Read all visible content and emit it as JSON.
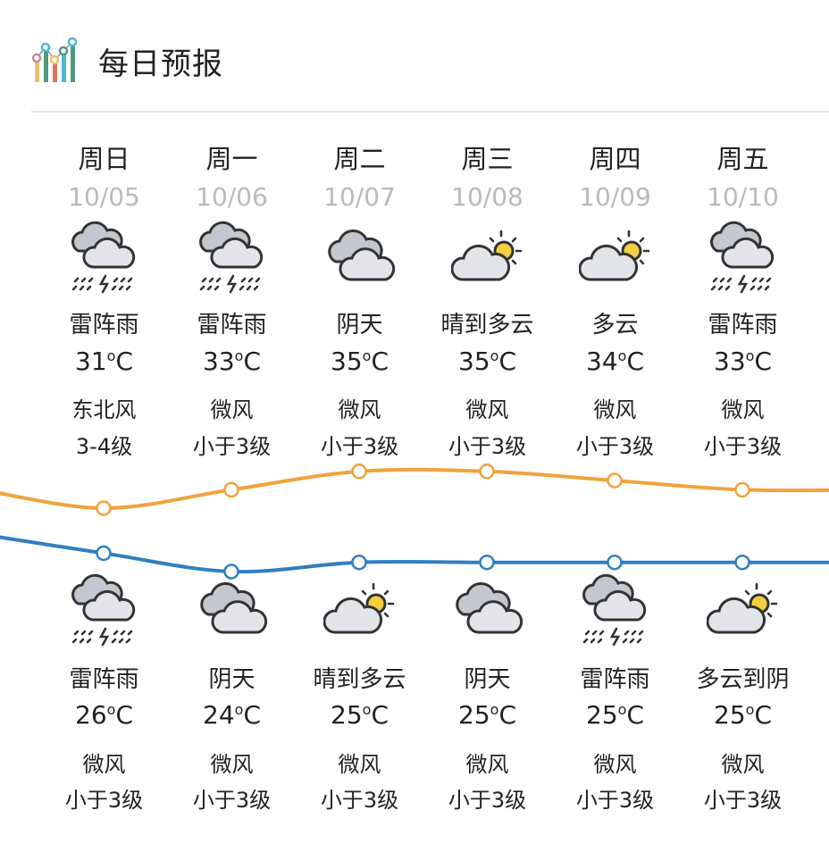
{
  "header": {
    "title": "每日预报",
    "icon": "bar-chart-icon"
  },
  "colors": {
    "high_line": "#f0a23c",
    "low_line": "#2f7fc1",
    "day_text": "#222222",
    "date_text": "#bbbbbb"
  },
  "days": [
    {
      "day": "周日",
      "date": "10/05",
      "day_icon": "thunderstorm",
      "day_cond": "雷阵雨",
      "high": "31",
      "day_wind": "东北风",
      "day_level": "3-4级",
      "night_icon": "thunderstorm",
      "night_cond": "雷阵雨",
      "low": "26",
      "night_wind": "微风",
      "night_level": "小于3级"
    },
    {
      "day": "周一",
      "date": "10/06",
      "day_icon": "thunderstorm",
      "day_cond": "雷阵雨",
      "high": "33",
      "day_wind": "微风",
      "day_level": "小于3级",
      "night_icon": "overcast",
      "night_cond": "阴天",
      "low": "24",
      "night_wind": "微风",
      "night_level": "小于3级"
    },
    {
      "day": "周二",
      "date": "10/07",
      "day_icon": "overcast",
      "day_cond": "阴天",
      "high": "35",
      "day_wind": "微风",
      "day_level": "小于3级",
      "night_icon": "partly-cloudy",
      "night_cond": "晴到多云",
      "low": "25",
      "night_wind": "微风",
      "night_level": "小于3级"
    },
    {
      "day": "周三",
      "date": "10/08",
      "day_icon": "partly-cloudy",
      "day_cond": "晴到多云",
      "high": "35",
      "day_wind": "微风",
      "day_level": "小于3级",
      "night_icon": "overcast",
      "night_cond": "阴天",
      "low": "25",
      "night_wind": "微风",
      "night_level": "小于3级"
    },
    {
      "day": "周四",
      "date": "10/09",
      "day_icon": "partly-cloudy",
      "day_cond": "多云",
      "high": "34",
      "day_wind": "微风",
      "day_level": "小于3级",
      "night_icon": "thunderstorm",
      "night_cond": "雷阵雨",
      "low": "25",
      "night_wind": "微风",
      "night_level": "小于3级"
    },
    {
      "day": "周五",
      "date": "10/10",
      "day_icon": "thunderstorm",
      "day_cond": "雷阵雨",
      "high": "33",
      "day_wind": "微风",
      "day_level": "小于3级",
      "night_icon": "partly-cloudy",
      "night_cond": "多云到阴",
      "low": "25",
      "night_wind": "微风",
      "night_level": "小于3级"
    }
  ],
  "unit": "°C"
}
